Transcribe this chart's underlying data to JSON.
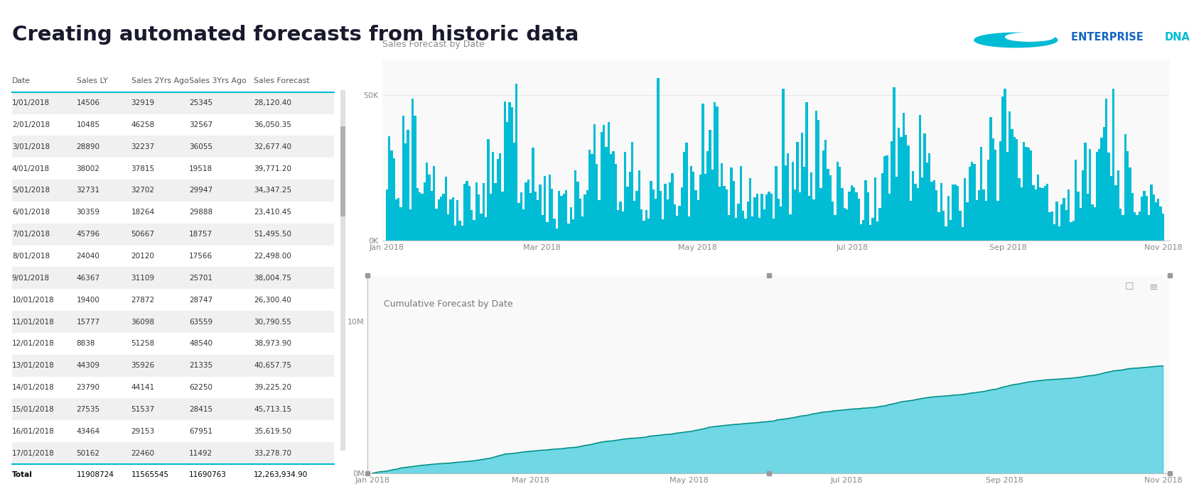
{
  "title": "Creating automated forecasts from historic data",
  "title_color": "#1a1a2e",
  "background_color": "#ffffff",
  "table": {
    "headers": [
      "Date",
      "Sales LY",
      "Sales 2Yrs Ago",
      "Sales 3Yrs Ago",
      "Sales Forecast"
    ],
    "rows": [
      [
        "1/01/2018",
        "14506",
        "32919",
        "25345",
        "28,120.40"
      ],
      [
        "2/01/2018",
        "10485",
        "46258",
        "32567",
        "36,050.35"
      ],
      [
        "3/01/2018",
        "28890",
        "32237",
        "36055",
        "32,677.40"
      ],
      [
        "4/01/2018",
        "38002",
        "37815",
        "19518",
        "39,771.20"
      ],
      [
        "5/01/2018",
        "32731",
        "32702",
        "29947",
        "34,347.25"
      ],
      [
        "6/01/2018",
        "30359",
        "18264",
        "29888",
        "23,410.45"
      ],
      [
        "7/01/2018",
        "45796",
        "50667",
        "18757",
        "51,495.50"
      ],
      [
        "8/01/2018",
        "24040",
        "20120",
        "17566",
        "22,498.00"
      ],
      [
        "9/01/2018",
        "46367",
        "31109",
        "25701",
        "38,004.75"
      ],
      [
        "10/01/2018",
        "19400",
        "27872",
        "28747",
        "26,300.40"
      ],
      [
        "11/01/2018",
        "15777",
        "36098",
        "63559",
        "30,790.55"
      ],
      [
        "12/01/2018",
        "8838",
        "51258",
        "48540",
        "38,973.90"
      ],
      [
        "13/01/2018",
        "44309",
        "35926",
        "21335",
        "40,657.75"
      ],
      [
        "14/01/2018",
        "23790",
        "44141",
        "62250",
        "39,225.20"
      ],
      [
        "15/01/2018",
        "27535",
        "51537",
        "28415",
        "45,713.15"
      ],
      [
        "16/01/2018",
        "43464",
        "29153",
        "67951",
        "35,619.50"
      ],
      [
        "17/01/2018",
        "50162",
        "22460",
        "11492",
        "33,278.70"
      ]
    ],
    "total_row": [
      "Total",
      "11908724",
      "11565545",
      "11690763",
      "12,263,934.90"
    ],
    "header_underline_color": "#00bcd4",
    "row_colors": [
      "#f0f0f0",
      "#ffffff"
    ],
    "text_color": "#333333",
    "total_text_color": "#000000"
  },
  "bar_chart": {
    "title": "Sales Forecast by Date",
    "title_color": "#888888",
    "bar_color": "#00bcd4",
    "x_labels": [
      "Jan 2018",
      "Mar 2018",
      "May 2018",
      "Jul 2018",
      "Sep 2018",
      "Nov 2018"
    ],
    "y_labels": [
      "0K",
      "50K"
    ],
    "y_max": 62000,
    "background_color": "#f9f9f9",
    "num_bars": 330
  },
  "area_chart": {
    "title": "Cumulative Forecast by Date",
    "title_color": "#777777",
    "fill_color": "#00bcd4",
    "fill_alpha": 0.55,
    "line_color": "#00897b",
    "x_labels": [
      "Jan 2018",
      "Mar 2018",
      "May 2018",
      "Jul 2018",
      "Sep 2018",
      "Nov 2018"
    ],
    "y_labels": [
      "0M",
      "10M"
    ],
    "y_max": 13000000,
    "background_color": "#f9f9f9",
    "border_color": "#1565c0",
    "border_width": 4
  },
  "logo_text_enterprise": "ENTERPRISE ",
  "logo_text_dna": "DNA",
  "logo_color": "#1565c0",
  "logo_accent": "#00bcd4"
}
